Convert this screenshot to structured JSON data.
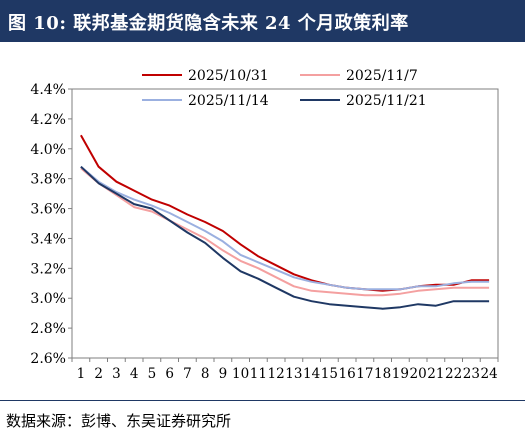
{
  "title": "图 10:  联邦基金期货隐含未来 24 个月政策利率",
  "source": "数据来源：彭博、东吴证券研究所",
  "chart_data": {
    "type": "line",
    "x": [
      1,
      2,
      3,
      4,
      5,
      6,
      7,
      8,
      9,
      10,
      11,
      12,
      13,
      14,
      15,
      16,
      17,
      18,
      19,
      20,
      21,
      22,
      23,
      24
    ],
    "x_tick_labels": [
      "1",
      "2",
      "3",
      "4",
      "5",
      "6",
      "7",
      "8",
      "9",
      "10",
      "11",
      "12",
      "13",
      "14",
      "15",
      "16",
      "17",
      "18",
      "19",
      "20",
      "21",
      "22",
      "23",
      "24"
    ],
    "y_tick_labels": [
      "2.6%",
      "2.8%",
      "3.0%",
      "3.2%",
      "3.4%",
      "3.6%",
      "3.8%",
      "4.0%",
      "4.2%",
      "4.4%"
    ],
    "ylim": [
      2.6,
      4.4
    ],
    "grid": false,
    "legend_position": "top",
    "series": [
      {
        "name": "2025/10/31",
        "color": "#c00000",
        "values": [
          4.09,
          3.88,
          3.78,
          3.72,
          3.66,
          3.62,
          3.56,
          3.51,
          3.45,
          3.36,
          3.28,
          3.22,
          3.16,
          3.12,
          3.09,
          3.07,
          3.06,
          3.05,
          3.06,
          3.08,
          3.09,
          3.09,
          3.12,
          3.12
        ]
      },
      {
        "name": "2025/11/7",
        "color": "#f4a0a0",
        "values": [
          3.87,
          3.77,
          3.69,
          3.61,
          3.58,
          3.52,
          3.46,
          3.4,
          3.32,
          3.25,
          3.2,
          3.14,
          3.08,
          3.05,
          3.04,
          3.03,
          3.02,
          3.02,
          3.03,
          3.05,
          3.06,
          3.07,
          3.07,
          3.07
        ]
      },
      {
        "name": "2025/11/14",
        "color": "#9bb0e0",
        "values": [
          3.88,
          3.78,
          3.71,
          3.66,
          3.62,
          3.57,
          3.51,
          3.45,
          3.38,
          3.29,
          3.24,
          3.19,
          3.14,
          3.11,
          3.09,
          3.07,
          3.06,
          3.06,
          3.06,
          3.08,
          3.08,
          3.1,
          3.11,
          3.11
        ]
      },
      {
        "name": "2025/11/21",
        "color": "#1f3864",
        "values": [
          3.88,
          3.77,
          3.7,
          3.63,
          3.6,
          3.52,
          3.44,
          3.37,
          3.27,
          3.18,
          3.13,
          3.07,
          3.01,
          2.98,
          2.96,
          2.95,
          2.94,
          2.93,
          2.94,
          2.96,
          2.95,
          2.98,
          2.98,
          2.98
        ]
      }
    ]
  }
}
